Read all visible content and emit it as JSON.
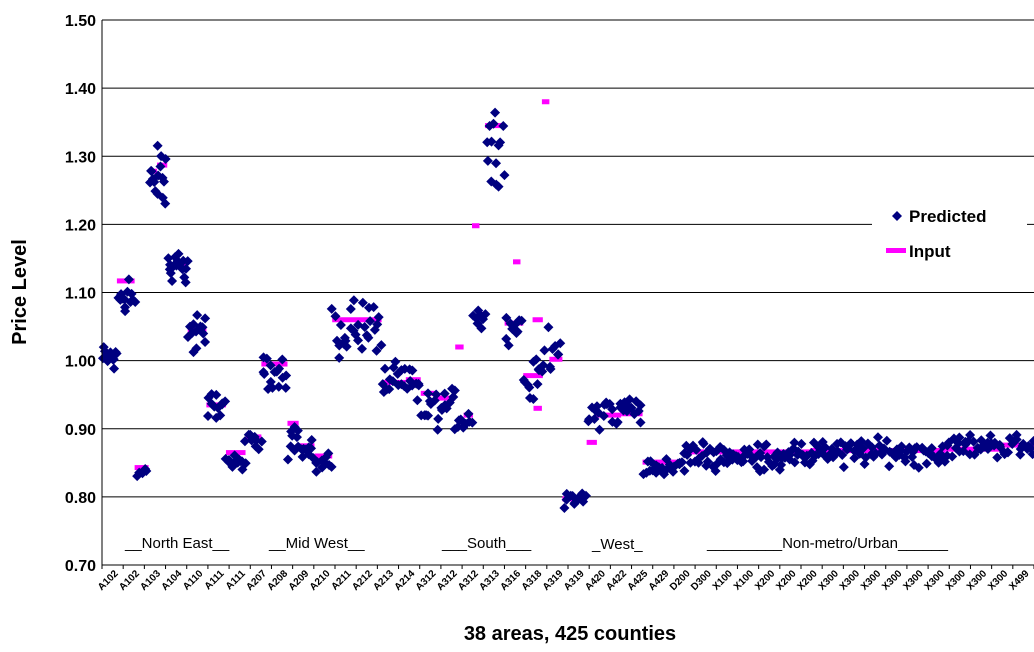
{
  "chart_data": {
    "type": "scatter",
    "xlabel": "38 areas, 425 counties",
    "ylabel": "Price Level",
    "ylim": [
      0.7,
      1.5
    ],
    "yticks": [
      "0.70",
      "0.80",
      "0.90",
      "1.00",
      "1.10",
      "1.20",
      "1.30",
      "1.40",
      "1.50"
    ],
    "grid": "horizontal",
    "legend": {
      "position": "right",
      "entries": [
        {
          "name": "Predicted",
          "color": "#000080",
          "marker": "diamond"
        },
        {
          "name": "Input",
          "color": "#FF00FF",
          "marker": "dash"
        }
      ]
    },
    "x_tick_labels": [
      "A102",
      "A102",
      "A103",
      "A104",
      "A110",
      "A111",
      "A111",
      "A207",
      "A208",
      "A209",
      "A210",
      "A211",
      "A212",
      "A213",
      "A214",
      "A312",
      "A312",
      "A312",
      "A313",
      "A316",
      "A318",
      "A319",
      "A319",
      "A420",
      "A422",
      "A425",
      "A429",
      "D200",
      "D300",
      "X100",
      "X100",
      "X200",
      "X200",
      "X200",
      "X300",
      "X300",
      "X300",
      "X300",
      "X300",
      "X300",
      "X300",
      "X300",
      "X300",
      "X499"
    ],
    "region_labels": [
      "__North East__",
      "__Mid West__",
      "___South___",
      "_West_",
      "_________Non-metro/Urban______"
    ],
    "input_segments": [
      {
        "x": [
          0,
          16
        ],
        "y": 1.007
      },
      {
        "x": [
          16,
          35
        ],
        "y": 1.117
      },
      {
        "x": [
          35,
          50
        ],
        "y": 0.843
      },
      {
        "x": [
          51,
          59
        ],
        "y": 1.278
      },
      {
        "x": [
          59,
          70
        ],
        "y": 1.287
      },
      {
        "x": [
          70,
          92
        ],
        "y": 1.14
      },
      {
        "x": [
          92,
          112
        ],
        "y": 1.045
      },
      {
        "x": [
          112,
          133
        ],
        "y": 0.935
      },
      {
        "x": [
          133,
          154
        ],
        "y": 0.865
      },
      {
        "x": [
          154,
          171
        ],
        "y": 0.888
      },
      {
        "x": [
          171,
          199
        ],
        "y": 0.995
      },
      {
        "x": [
          199,
          211
        ],
        "y": 0.908
      },
      {
        "x": [
          211,
          228
        ],
        "y": 0.875
      },
      {
        "x": [
          228,
          247
        ],
        "y": 0.86
      },
      {
        "x": [
          247,
          300
        ],
        "y": 1.06
      },
      {
        "x": [
          300,
          326
        ],
        "y": 0.968
      },
      {
        "x": [
          326,
          342
        ],
        "y": 0.972
      },
      {
        "x": [
          342,
          357
        ],
        "y": 0.952
      },
      {
        "x": [
          357,
          379
        ],
        "y": 0.945
      },
      {
        "x": [
          379,
          388
        ],
        "y": 1.02
      },
      {
        "x": [
          388,
          398
        ],
        "y": 0.92
      },
      {
        "x": [
          397,
          405
        ],
        "y": 1.198
      },
      {
        "x": [
          402,
          412
        ],
        "y": 1.068
      },
      {
        "x": [
          411,
          432
        ],
        "y": 1.345
      },
      {
        "x": [
          432,
          452
        ],
        "y": 1.055
      },
      {
        "x": [
          441,
          449
        ],
        "y": 1.145
      },
      {
        "x": [
          452,
          473
        ],
        "y": 0.978
      },
      {
        "x": [
          462,
          473
        ],
        "y": 1.06
      },
      {
        "x": [
          463,
          472
        ],
        "y": 0.93
      },
      {
        "x": [
          472,
          480
        ],
        "y": 1.38
      },
      {
        "x": [
          480,
          494
        ],
        "y": 1.002
      },
      {
        "x": [
          494,
          520
        ],
        "y": 0.797
      },
      {
        "x": [
          520,
          531
        ],
        "y": 0.88
      },
      {
        "x": [
          529,
          557
        ],
        "y": 0.92
      },
      {
        "x": [
          557,
          580
        ],
        "y": 0.922
      },
      {
        "x": [
          580,
          625
        ],
        "y": 0.851
      },
      {
        "x": [
          625,
          760
        ],
        "y": 0.866
      },
      {
        "x": [
          760,
          905
        ],
        "y": 0.868
      },
      {
        "x": [
          905,
          965
        ],
        "y": 0.87
      },
      {
        "x": [
          965,
          1000
        ],
        "y": 0.876
      }
    ],
    "predicted_groups": [
      {
        "x": [
          0,
          16
        ],
        "center": 1.005,
        "spread": 0.025,
        "n": 14
      },
      {
        "x": [
          16,
          35
        ],
        "center": 1.1,
        "spread": 0.05,
        "n": 14
      },
      {
        "x": [
          35,
          50
        ],
        "center": 0.835,
        "spread": 0.012,
        "n": 5
      },
      {
        "x": [
          51,
          70
        ],
        "center": 1.26,
        "spread": 0.07,
        "n": 16
      },
      {
        "x": [
          70,
          92
        ],
        "center": 1.14,
        "spread": 0.03,
        "n": 18
      },
      {
        "x": [
          92,
          112
        ],
        "center": 1.04,
        "spread": 0.04,
        "n": 14
      },
      {
        "x": [
          112,
          133
        ],
        "center": 0.935,
        "spread": 0.025,
        "n": 12
      },
      {
        "x": [
          133,
          154
        ],
        "center": 0.852,
        "spread": 0.015,
        "n": 12
      },
      {
        "x": [
          154,
          171
        ],
        "center": 0.88,
        "spread": 0.02,
        "n": 10
      },
      {
        "x": [
          171,
          199
        ],
        "center": 0.985,
        "spread": 0.035,
        "n": 16
      },
      {
        "x": [
          199,
          211
        ],
        "center": 0.89,
        "spread": 0.04,
        "n": 8
      },
      {
        "x": [
          211,
          228
        ],
        "center": 0.865,
        "spread": 0.02,
        "n": 10
      },
      {
        "x": [
          228,
          247
        ],
        "center": 0.85,
        "spread": 0.02,
        "n": 10
      },
      {
        "x": [
          247,
          300
        ],
        "center": 1.05,
        "spread": 0.055,
        "n": 30
      },
      {
        "x": [
          300,
          342
        ],
        "center": 0.965,
        "spread": 0.035,
        "n": 24
      },
      {
        "x": [
          342,
          379
        ],
        "center": 0.93,
        "spread": 0.04,
        "n": 20
      },
      {
        "x": [
          379,
          398
        ],
        "center": 0.915,
        "spread": 0.03,
        "n": 10
      },
      {
        "x": [
          398,
          412
        ],
        "center": 1.07,
        "spread": 0.035,
        "n": 8
      },
      {
        "x": [
          412,
          432
        ],
        "center": 1.32,
        "spread": 0.07,
        "n": 14
      },
      {
        "x": [
          432,
          452
        ],
        "center": 1.045,
        "spread": 0.025,
        "n": 10
      },
      {
        "x": [
          452,
          473
        ],
        "center": 0.97,
        "spread": 0.04,
        "n": 12
      },
      {
        "x": [
          473,
          494
        ],
        "center": 1.02,
        "spread": 0.05,
        "n": 10
      },
      {
        "x": [
          494,
          520
        ],
        "center": 0.795,
        "spread": 0.012,
        "n": 12
      },
      {
        "x": [
          520,
          580
        ],
        "center": 0.925,
        "spread": 0.035,
        "n": 30
      },
      {
        "x": [
          580,
          625
        ],
        "center": 0.845,
        "spread": 0.015,
        "n": 24
      },
      {
        "x": [
          625,
          760
        ],
        "center": 0.86,
        "spread": 0.025,
        "n": 80
      },
      {
        "x": [
          760,
          905
        ],
        "center": 0.865,
        "spread": 0.025,
        "n": 80
      },
      {
        "x": [
          905,
          1000
        ],
        "center": 0.875,
        "spread": 0.02,
        "n": 50
      }
    ]
  }
}
